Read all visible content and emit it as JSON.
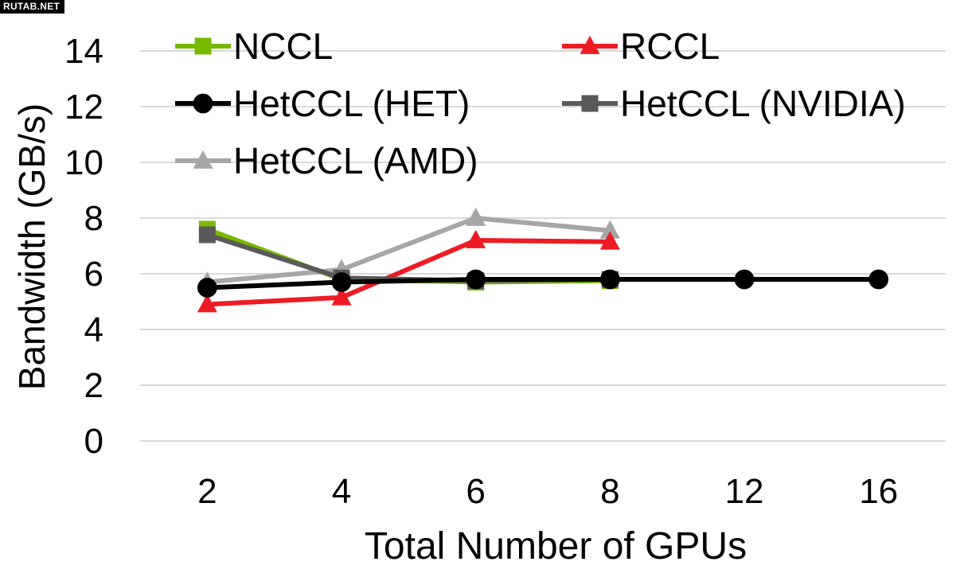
{
  "watermark": "RUTAB.NET",
  "chart_data": {
    "type": "line",
    "xlabel": "Total Number of GPUs",
    "ylabel": "Bandwidth (GB/s)",
    "categories": [
      "2",
      "4",
      "6",
      "8",
      "12",
      "16"
    ],
    "ylim": [
      0,
      14
    ],
    "yticks": [
      "0",
      "2",
      "4",
      "6",
      "8",
      "10",
      "12",
      "14"
    ],
    "grid": "horizontal",
    "legend": "top",
    "series": [
      {
        "name": "NCCL",
        "color": "#76b900",
        "marker": "square",
        "values": [
          7.6,
          5.8,
          5.7,
          5.75,
          null,
          null
        ]
      },
      {
        "name": "RCCL",
        "color": "#ed1c24",
        "marker": "triangle",
        "values": [
          4.9,
          5.15,
          7.2,
          7.15,
          null,
          null
        ]
      },
      {
        "name": "HetCCL (HET)",
        "color": "#000000",
        "marker": "circle",
        "values": [
          5.5,
          5.7,
          5.8,
          5.8,
          5.8,
          5.8
        ]
      },
      {
        "name": "HetCCL (NVIDIA)",
        "color": "#595959",
        "marker": "square",
        "values": [
          7.4,
          5.85,
          5.75,
          5.8,
          null,
          null
        ]
      },
      {
        "name": "HetCCL (AMD)",
        "color": "#a6a6a6",
        "marker": "triangle",
        "values": [
          5.7,
          6.15,
          8.0,
          7.55,
          null,
          null
        ]
      }
    ]
  }
}
